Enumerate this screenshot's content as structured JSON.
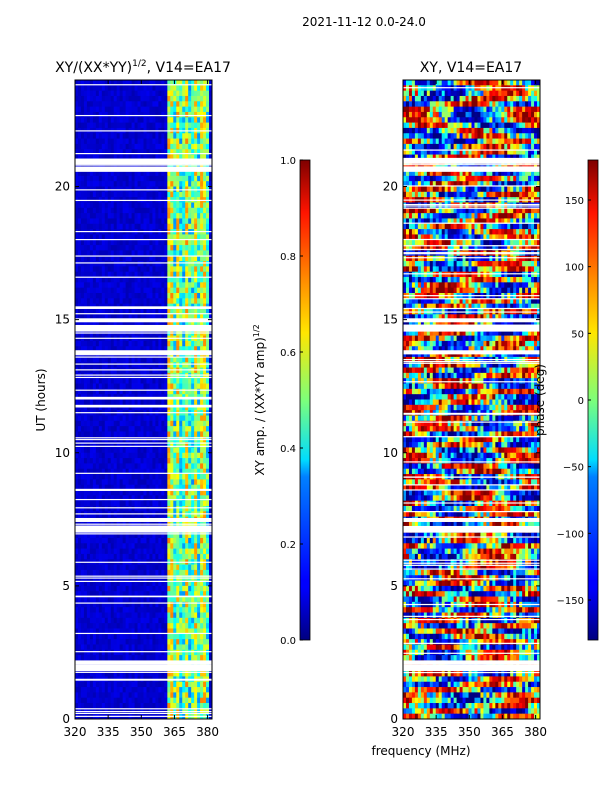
{
  "figure": {
    "suptitle": "2021-11-12 0.0-24.0",
    "shared_xlabel": "frequency (MHz)"
  },
  "chart_data": [
    {
      "type": "heatmap",
      "title": "XY/(XX*YY)",
      "title_superscript": "1/2",
      "title_suffix": ", V14=EA17",
      "xlabel": "",
      "ylabel": "UT (hours)",
      "xlim": [
        320,
        382
      ],
      "ylim": [
        0,
        24
      ],
      "xticks": [
        320,
        335,
        350,
        365,
        380
      ],
      "yticks": [
        0,
        5,
        10,
        15,
        20
      ],
      "background_level": 0.05,
      "bright_channel_range": [
        362,
        380
      ],
      "white_gaps_hours": [
        [
          14.55,
          14.8
        ],
        [
          14.9,
          15.05
        ],
        [
          13.7,
          13.85
        ],
        [
          1.8,
          2.05
        ],
        [
          2.05,
          2.2
        ],
        [
          7.0,
          7.25
        ],
        [
          7.4,
          7.55
        ],
        [
          20.55,
          20.75
        ],
        [
          20.85,
          21.05
        ],
        [
          11.7,
          11.8
        ],
        [
          12.0,
          12.1
        ],
        [
          15.4,
          15.5
        ]
      ],
      "colorbar": {
        "label": "XY amp. / (XX*YY amp)",
        "label_superscript": "1/2",
        "range": [
          0.0,
          1.0
        ],
        "ticks": [
          "0.0",
          "0.2",
          "0.4",
          "0.6",
          "0.8",
          "1.0"
        ],
        "colormap": "jet"
      }
    },
    {
      "type": "heatmap",
      "title": "XY, V14=EA17",
      "xlabel": "frequency (MHz)",
      "ylabel": "",
      "xlim": [
        320,
        382
      ],
      "ylim": [
        0,
        24
      ],
      "xticks": [
        320,
        335,
        350,
        365,
        380
      ],
      "yticks": [
        0,
        5,
        10,
        15,
        20
      ],
      "white_gaps_hours": [
        [
          14.55,
          14.8
        ],
        [
          14.9,
          15.05
        ],
        [
          13.7,
          13.85
        ],
        [
          1.8,
          2.05
        ],
        [
          2.05,
          2.2
        ],
        [
          7.0,
          7.25
        ],
        [
          7.4,
          7.55
        ],
        [
          20.55,
          20.75
        ],
        [
          20.85,
          21.05
        ]
      ],
      "colorbar": {
        "label": "phase (deg)",
        "range": [
          -180,
          180
        ],
        "ticks": [
          "150",
          "100",
          "50",
          "0",
          "−50",
          "−100",
          "−150"
        ],
        "colormap": "jet"
      }
    }
  ]
}
